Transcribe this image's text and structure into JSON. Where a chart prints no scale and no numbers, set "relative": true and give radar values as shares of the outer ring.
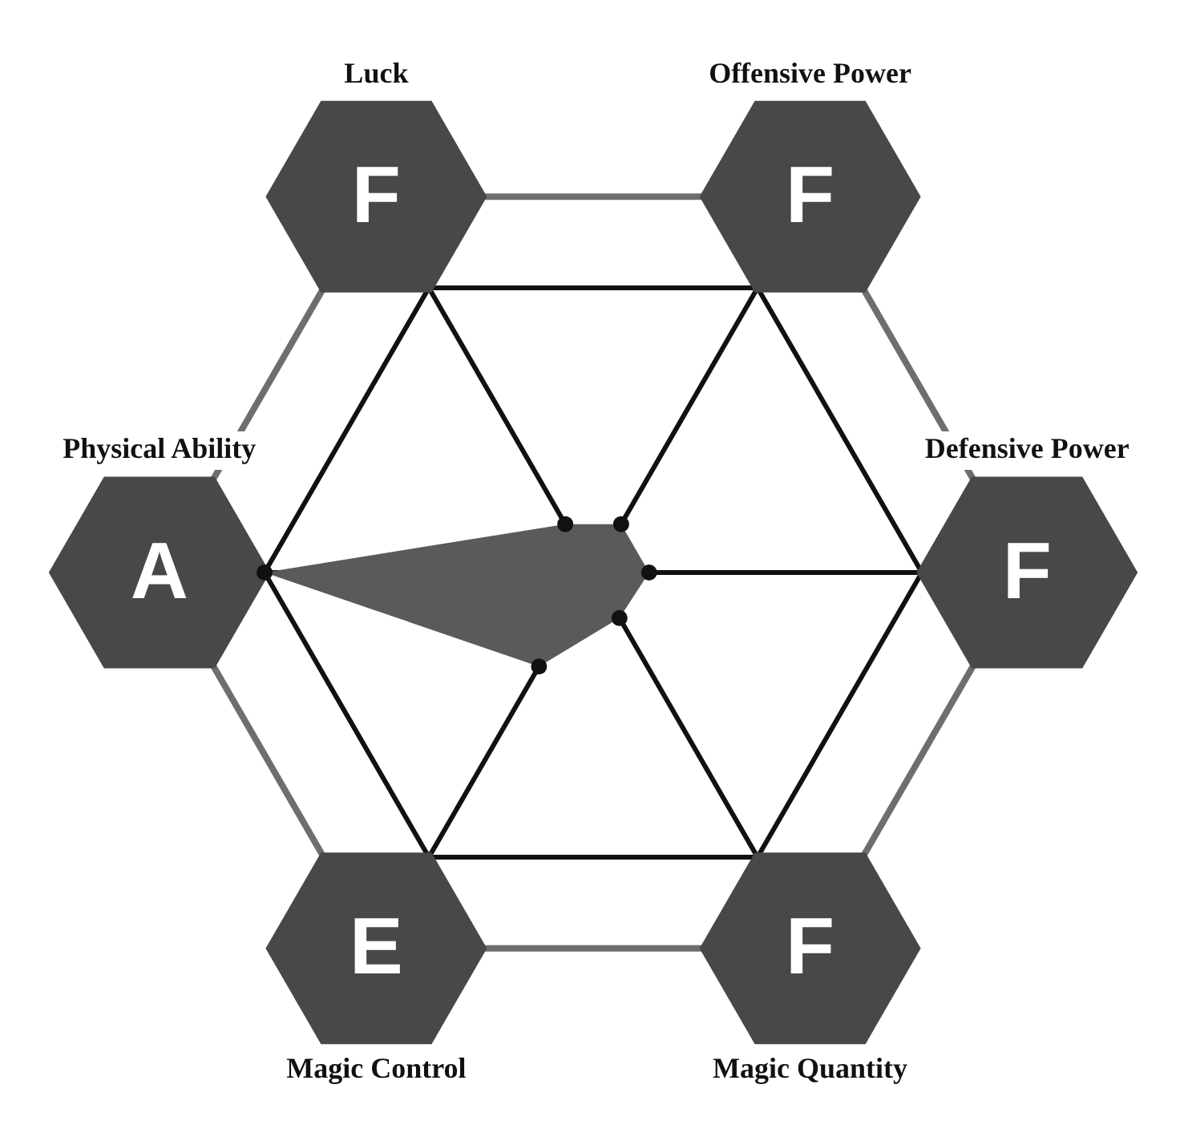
{
  "chart_data": {
    "type": "radar",
    "relative": true,
    "grid": true,
    "legend": false,
    "marker": "circle",
    "categories": [
      "Offensive Power",
      "Defensive Power",
      "Magic Quantity",
      "Magic Control",
      "Physical Ability",
      "Luck"
    ],
    "series": [
      {
        "color": "#5a5a5a",
        "values": [
          0.17,
          0.17,
          0.16,
          0.33,
          1,
          0.17
        ]
      }
    ],
    "annotations": [
      "F",
      "F",
      "F",
      "E",
      "A",
      "F"
    ]
  }
}
